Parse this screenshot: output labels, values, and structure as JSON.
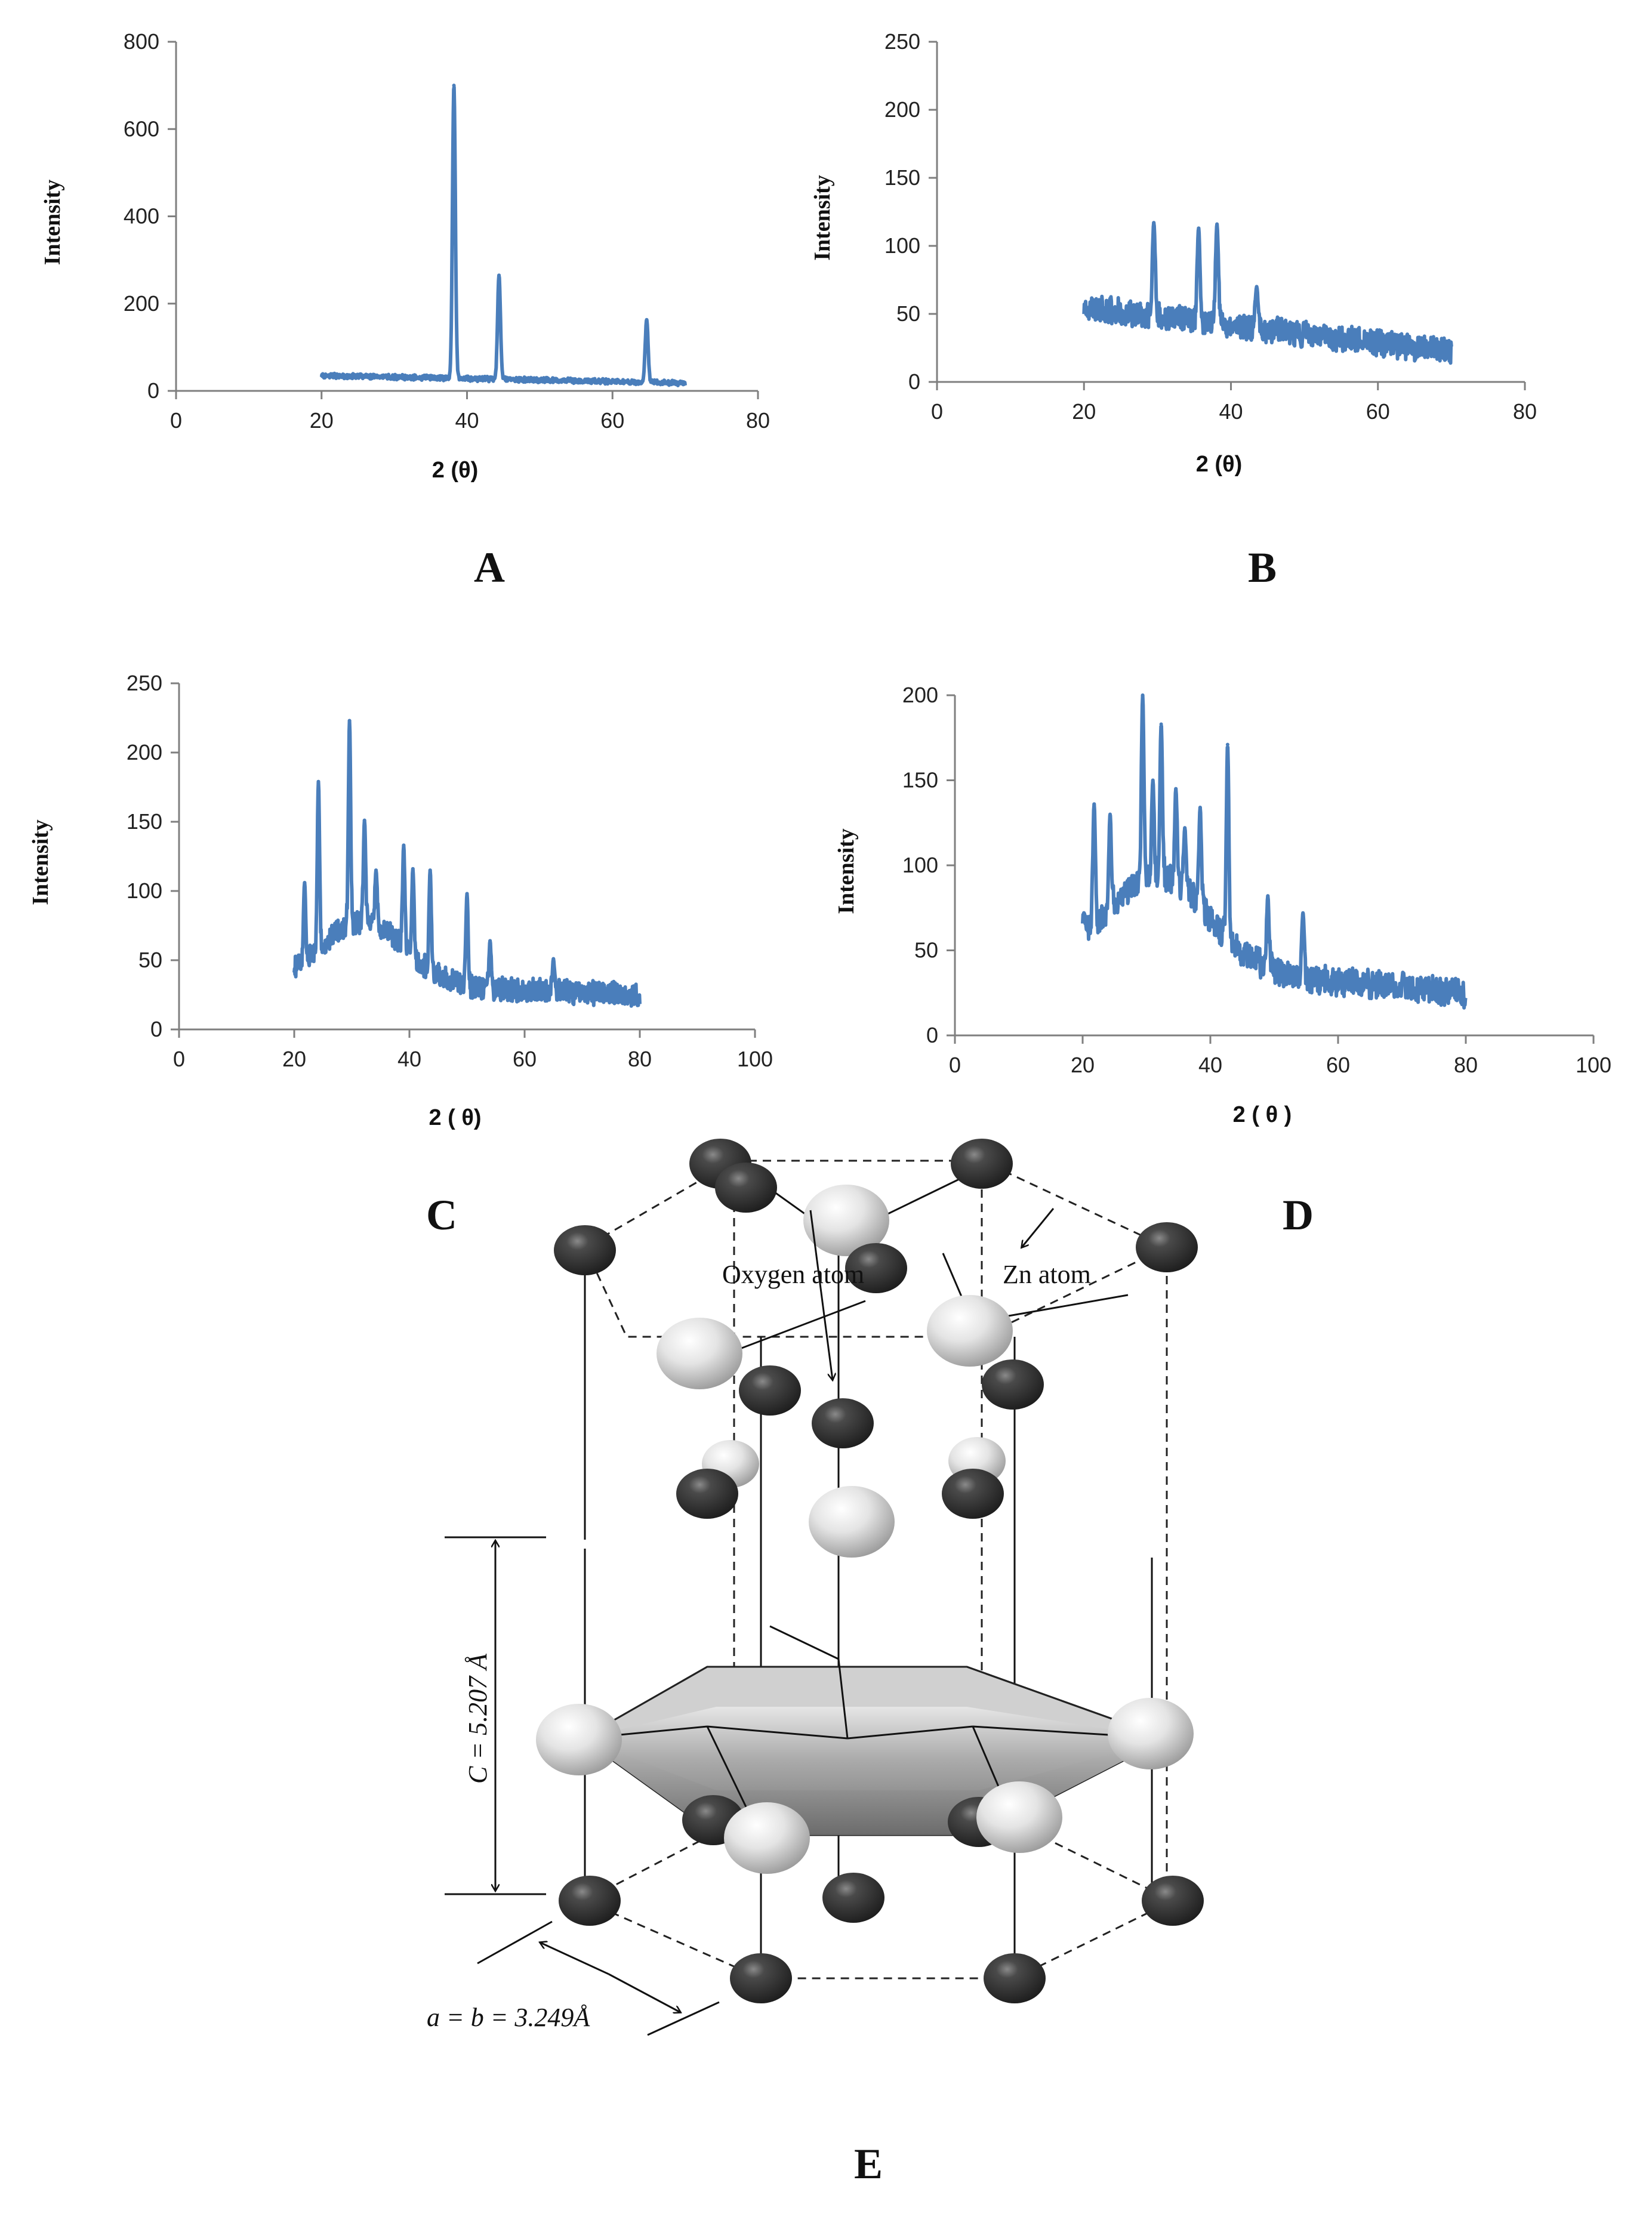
{
  "chart_data": [
    {
      "id": "A",
      "panel_label": "A",
      "type": "line",
      "xlabel": "2 (θ)",
      "ylabel": "Intensity",
      "xlim": [
        0,
        80
      ],
      "ylim": [
        0,
        800
      ],
      "xticks": [
        0,
        20,
        40,
        60,
        80
      ],
      "yticks": [
        0,
        200,
        400,
        600,
        800
      ],
      "color": "#4a7ebb",
      "series": [
        {
          "name": "A",
          "x_range": [
            20,
            70
          ],
          "baseline": [
            35,
            18
          ],
          "noise": 6,
          "seed": 11,
          "peaks": [
            {
              "x": 38.2,
              "y": 700
            },
            {
              "x": 44.4,
              "y": 265
            },
            {
              "x": 64.7,
              "y": 163
            }
          ]
        }
      ]
    },
    {
      "id": "B",
      "panel_label": "B",
      "type": "line",
      "xlabel": "2 (θ)",
      "ylabel": "Intensity",
      "xlim": [
        0,
        80
      ],
      "ylim": [
        0,
        250
      ],
      "xticks": [
        0,
        20,
        40,
        60,
        80
      ],
      "yticks": [
        0,
        50,
        100,
        150,
        200,
        250
      ],
      "color": "#4a7ebb",
      "series": [
        {
          "name": "B",
          "x_range": [
            20,
            70
          ],
          "baseline": [
            55,
            22
          ],
          "noise": 10,
          "seed": 23,
          "peaks": [
            {
              "x": 29.5,
              "y": 117
            },
            {
              "x": 35.6,
              "y": 113
            },
            {
              "x": 38.1,
              "y": 116
            },
            {
              "x": 43.5,
              "y": 70
            }
          ]
        }
      ]
    },
    {
      "id": "C",
      "panel_label": "C",
      "type": "line",
      "xlabel": "2 ( θ)",
      "ylabel": "Intensity",
      "xlim": [
        0,
        100
      ],
      "ylim": [
        0,
        250
      ],
      "xticks": [
        0,
        20,
        40,
        60,
        80,
        100
      ],
      "yticks": [
        0,
        50,
        100,
        150,
        200,
        250
      ],
      "color": "#4a7ebb",
      "series": [
        {
          "name": "C",
          "x_range": [
            20,
            80
          ],
          "baseline": [
            35,
            25
          ],
          "hump": {
            "x": 32,
            "y": 45,
            "w": 10
          },
          "noise": 9,
          "seed": 37,
          "peaks": [
            {
              "x": 21.8,
              "y": 106
            },
            {
              "x": 24.2,
              "y": 179
            },
            {
              "x": 29.6,
              "y": 223
            },
            {
              "x": 32.2,
              "y": 151
            },
            {
              "x": 34.2,
              "y": 115
            },
            {
              "x": 39.0,
              "y": 133
            },
            {
              "x": 40.6,
              "y": 116
            },
            {
              "x": 43.6,
              "y": 115
            },
            {
              "x": 50.0,
              "y": 98
            },
            {
              "x": 54.0,
              "y": 64
            },
            {
              "x": 65.0,
              "y": 51
            }
          ]
        }
      ]
    },
    {
      "id": "D",
      "panel_label": "D",
      "type": "line",
      "xlabel": "2 ( θ )",
      "ylabel": "Intensity",
      "xlim": [
        0,
        100
      ],
      "ylim": [
        0,
        200
      ],
      "xticks": [
        0,
        20,
        40,
        60,
        80,
        100
      ],
      "yticks": [
        0,
        50,
        100,
        150,
        200
      ],
      "color": "#4a7ebb",
      "series": [
        {
          "name": "D",
          "x_range": [
            20,
            80
          ],
          "baseline": [
            45,
            25
          ],
          "hump": {
            "x": 32,
            "y": 52,
            "w": 11
          },
          "noise": 9,
          "seed": 53,
          "peaks": [
            {
              "x": 20.2,
              "y": 72
            },
            {
              "x": 21.8,
              "y": 136
            },
            {
              "x": 24.3,
              "y": 130
            },
            {
              "x": 29.4,
              "y": 200
            },
            {
              "x": 31.0,
              "y": 150
            },
            {
              "x": 32.3,
              "y": 183
            },
            {
              "x": 34.6,
              "y": 145
            },
            {
              "x": 36.0,
              "y": 122
            },
            {
              "x": 38.4,
              "y": 134
            },
            {
              "x": 42.7,
              "y": 171
            },
            {
              "x": 49.0,
              "y": 82
            },
            {
              "x": 54.5,
              "y": 72
            }
          ]
        }
      ]
    }
  ],
  "figure_e": {
    "panel_label": "E",
    "oxygen_label": "Oxygen atom",
    "zn_label": "Zn atom",
    "c_label": "C = 5.207 Å",
    "a_label": "a = b = 3.249Å",
    "zn_color": "#3c3c3c",
    "o_color": "#e8e8e8"
  }
}
